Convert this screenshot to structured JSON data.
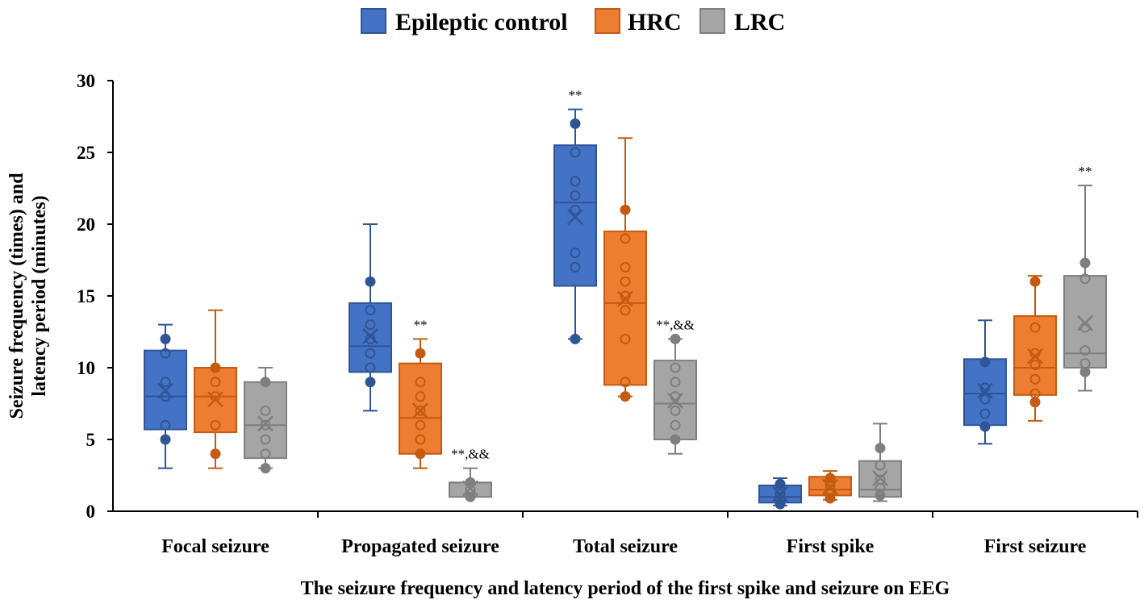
{
  "chart_data": {
    "type": "box",
    "title": "",
    "xlabel": "The seizure frequency and latency period of the first spike and seizure on EEG",
    "ylabel_lines": [
      "Seizure frequency (times) and",
      "latency period (minutes)"
    ],
    "ylim": [
      0,
      30
    ],
    "yticks": [
      0,
      5,
      10,
      15,
      20,
      25,
      30
    ],
    "legend_position": "top-center",
    "categories": [
      "Focal seizure",
      "Propagated seizure",
      "Total seizure",
      "First spike",
      "First seizure"
    ],
    "series": [
      {
        "name": "Epileptic control",
        "color": "#4472C4",
        "stroke": "#2F5597",
        "boxes": [
          {
            "min": 3,
            "q1": 5.7,
            "median": 8,
            "q3": 11.2,
            "max": 13,
            "mean": 8.4,
            "points": [
              12,
              11,
              9,
              8,
              6,
              5
            ],
            "outliers": [],
            "annotation": ""
          },
          {
            "min": 7,
            "q1": 9.7,
            "median": 11.5,
            "q3": 14.5,
            "max": 20,
            "mean": 12.2,
            "points": [
              16,
              14,
              13,
              12,
              11,
              10,
              9
            ],
            "outliers": [],
            "annotation": ""
          },
          {
            "min": 12,
            "q1": 15.7,
            "median": 21.5,
            "q3": 25.5,
            "max": 28,
            "mean": 20.5,
            "points": [
              27,
              25,
              23,
              22,
              21,
              18,
              17,
              12
            ],
            "outliers": [],
            "annotation": "**"
          },
          {
            "min": 0.4,
            "q1": 0.6,
            "median": 1.0,
            "q3": 1.8,
            "max": 2.3,
            "mean": 1.2,
            "points": [
              1.9,
              1.5,
              1.2,
              0.8,
              0.5
            ],
            "outliers": [],
            "annotation": ""
          },
          {
            "min": 4.7,
            "q1": 6.0,
            "median": 8.2,
            "q3": 10.6,
            "max": 13.3,
            "mean": 8.4,
            "points": [
              10.4,
              8.6,
              7.8,
              6.8,
              5.9
            ],
            "outliers": [],
            "annotation": ""
          }
        ]
      },
      {
        "name": "HRC",
        "color": "#ED7D31",
        "stroke": "#C55A11",
        "boxes": [
          {
            "min": 3,
            "q1": 5.5,
            "median": 8,
            "q3": 10,
            "max": 14,
            "mean": 7.8,
            "points": [
              10,
              9,
              8,
              6,
              4
            ],
            "outliers": [],
            "annotation": ""
          },
          {
            "min": 3,
            "q1": 4,
            "median": 6.5,
            "q3": 10.3,
            "max": 12,
            "mean": 7.0,
            "points": [
              11,
              9,
              8,
              7,
              6,
              5,
              4
            ],
            "outliers": [],
            "annotation": "**"
          },
          {
            "min": 8,
            "q1": 8.8,
            "median": 14.5,
            "q3": 19.5,
            "max": 26,
            "mean": 14.8,
            "points": [
              21,
              19,
              17,
              16,
              15,
              14,
              12,
              9,
              8
            ],
            "outliers": [],
            "annotation": ""
          },
          {
            "min": 0.8,
            "q1": 1.1,
            "median": 1.5,
            "q3": 2.4,
            "max": 2.8,
            "mean": 1.7,
            "points": [
              2.3,
              1.8,
              1.5,
              1.2,
              0.9
            ],
            "outliers": [],
            "annotation": ""
          },
          {
            "min": 6.3,
            "q1": 8.1,
            "median": 10,
            "q3": 13.6,
            "max": 16.4,
            "mean": 10.8,
            "points": [
              16,
              12.8,
              11,
              10.2,
              9.2,
              8.2,
              7.6
            ],
            "outliers": [],
            "annotation": ""
          }
        ]
      },
      {
        "name": "LRC",
        "color": "#A5A5A5",
        "stroke": "#7F7F7F",
        "boxes": [
          {
            "min": 3,
            "q1": 3.7,
            "median": 6,
            "q3": 9,
            "max": 10,
            "mean": 6.1,
            "points": [
              9,
              7,
              6,
              5,
              4,
              3
            ],
            "outliers": [],
            "annotation": ""
          },
          {
            "min": 1,
            "q1": 1,
            "median": 2,
            "q3": 2,
            "max": 3,
            "mean": 1.6,
            "points": [
              2,
              1.5,
              1
            ],
            "outliers": [],
            "annotation": "**,&&"
          },
          {
            "min": 4,
            "q1": 5,
            "median": 7.5,
            "q3": 10.5,
            "max": 12,
            "mean": 7.7,
            "points": [
              12,
              10,
              9,
              8,
              7,
              6,
              5
            ],
            "outliers": [],
            "annotation": "**,&&"
          },
          {
            "min": 0.7,
            "q1": 1.0,
            "median": 1.5,
            "q3": 3.5,
            "max": 6.1,
            "mean": 2.3,
            "points": [
              4.4,
              3.2,
              2.2,
              1.6,
              1.1
            ],
            "outliers": [],
            "annotation": ""
          },
          {
            "min": 8.4,
            "q1": 10,
            "median": 11,
            "q3": 16.4,
            "max": 22.7,
            "mean": 13.1,
            "points": [
              17.3,
              16.2,
              12.8,
              11.2,
              10.3,
              9.7
            ],
            "outliers": [],
            "annotation": "**"
          }
        ]
      }
    ]
  }
}
